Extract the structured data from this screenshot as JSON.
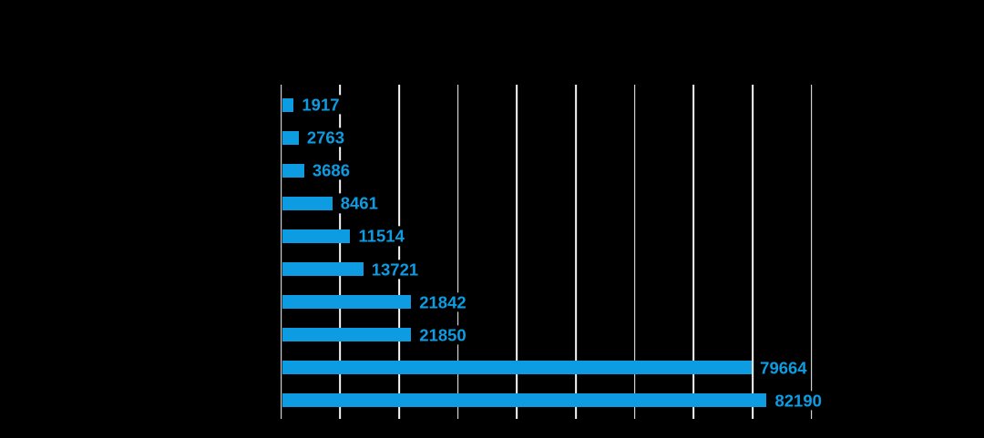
{
  "chart_data": {
    "type": "bar",
    "orientation": "horizontal",
    "title": "",
    "values": [
      1917,
      2763,
      3686,
      8461,
      11514,
      13721,
      21842,
      21850,
      79664,
      82190
    ],
    "data_labels": [
      "1917",
      "2763",
      "3686",
      "8461",
      "11514",
      "13721",
      "21842",
      "21850",
      "79664",
      "82190"
    ],
    "xlim": [
      0,
      90000
    ],
    "x_gridline_step": 10000,
    "grid": "vertical-gridlines-only",
    "legend": "none",
    "axis_tick_labels_visible": false,
    "category_labels_visible": false,
    "data_labels_position": "outside-end",
    "colors": {
      "bar": "#0d9ce2",
      "data_label": "#0d9ce2",
      "gridline": "#f7f7f7",
      "background": "#000000"
    }
  }
}
